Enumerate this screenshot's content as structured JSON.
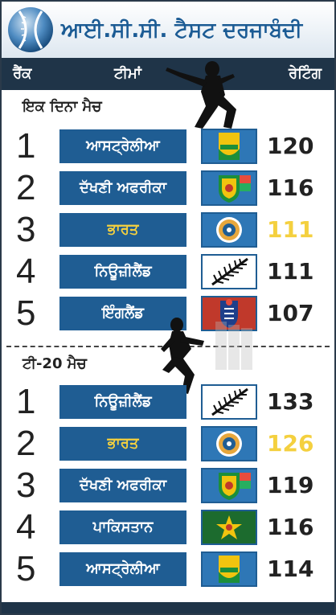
{
  "header": {
    "title": "ਆਈ.ਸੀ.ਸੀ. ਟੈਸਟ ਦਰਜਾਬੰਦੀ",
    "logo_icon": "cricket-ball-logo-icon"
  },
  "columns": {
    "rank": "ਰੈਂਕ",
    "team": "ਟੀਮਾਂ",
    "rating": "ਰੇਟਿੰਗ"
  },
  "sections": [
    {
      "title": "ਇਕ ਦਿਨਾ ਮੈਚ",
      "rows": [
        {
          "rank": "1",
          "team": "ਆਸਟ੍ਰੇਲੀਆ",
          "rating": "120",
          "highlight": false,
          "emblem": "australia-cricket-emblem-icon"
        },
        {
          "rank": "2",
          "team": "ਦੱਖਣੀ ਅਫਰੀਕਾ",
          "rating": "116",
          "highlight": false,
          "emblem": "south-africa-protea-emblem-icon"
        },
        {
          "rank": "3",
          "team": "ਭਾਰਤ",
          "rating": "111",
          "highlight": true,
          "emblem": "india-bcci-emblem-icon"
        },
        {
          "rank": "4",
          "team": "ਨਿਊਜ਼ੀਲੈਂਡ",
          "rating": "111",
          "highlight": false,
          "emblem": "new-zealand-fern-emblem-icon"
        },
        {
          "rank": "5",
          "team": "ਇੰਗਲੈਂਡ",
          "rating": "107",
          "highlight": false,
          "emblem": "england-lions-emblem-icon"
        }
      ]
    },
    {
      "title": "ਟੀ-20 ਮੈਚ",
      "rows": [
        {
          "rank": "1",
          "team": "ਨਿਊਜ਼ੀਲੈਂਡ",
          "rating": "133",
          "highlight": false,
          "emblem": "new-zealand-fern-emblem-icon"
        },
        {
          "rank": "2",
          "team": "ਭਾਰਤ",
          "rating": "126",
          "highlight": true,
          "emblem": "india-bcci-emblem-icon"
        },
        {
          "rank": "3",
          "team": "ਦੱਖਣੀ ਅਫਰੀਕਾ",
          "rating": "119",
          "highlight": false,
          "emblem": "south-africa-protea-emblem-icon"
        },
        {
          "rank": "4",
          "team": "ਪਾਕਿਸਤਾਨ",
          "rating": "116",
          "highlight": false,
          "emblem": "pakistan-star-emblem-icon"
        },
        {
          "rank": "5",
          "team": "ਆਸਟ੍ਰੇਲੀਆ",
          "rating": "114",
          "highlight": false,
          "emblem": "australia-cricket-emblem-icon"
        }
      ]
    }
  ],
  "colors": {
    "header_text": "#1b5b94",
    "bar_dark": "#1f3448",
    "team_box": "#1f5d93",
    "highlight": "#f4d03f"
  }
}
